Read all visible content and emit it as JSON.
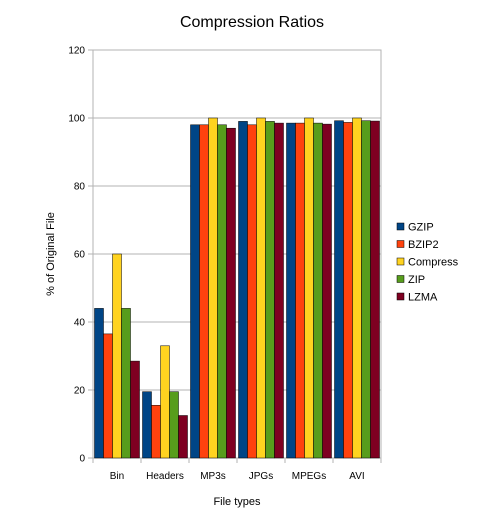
{
  "chart_data": {
    "type": "bar",
    "title": "Compression Ratios",
    "xlabel": "File types",
    "ylabel": "% of Original File",
    "ylim": [
      0,
      120
    ],
    "yticks": [
      0,
      20,
      40,
      60,
      80,
      100,
      120
    ],
    "grid": true,
    "legend_position": "right",
    "categories": [
      "Bin",
      "Headers",
      "MP3s",
      "JPGs",
      "MPEGs",
      "AVI"
    ],
    "series": [
      {
        "name": "GZIP",
        "color": "#004586",
        "values": [
          44,
          19.5,
          98,
          99,
          98.5,
          99.2
        ]
      },
      {
        "name": "BZIP2",
        "color": "#ff420e",
        "values": [
          36.5,
          15.5,
          98,
          98,
          98.5,
          98.7
        ]
      },
      {
        "name": "Compress",
        "color": "#ffd320",
        "values": [
          60,
          33,
          100,
          100,
          100,
          100
        ]
      },
      {
        "name": "ZIP",
        "color": "#579d1c",
        "values": [
          44,
          19.5,
          98,
          99,
          98.5,
          99.2
        ]
      },
      {
        "name": "LZMA",
        "color": "#7e0021",
        "values": [
          28.5,
          12.5,
          97,
          98.5,
          98.2,
          99.1
        ]
      }
    ]
  }
}
